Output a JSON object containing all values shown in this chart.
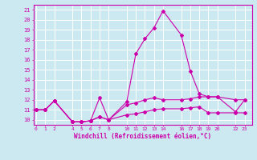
{
  "xlabel": "Windchill (Refroidissement éolien,°C)",
  "background_color": "#cce8f0",
  "grid_color": "#ffffff",
  "line_color": "#cc00aa",
  "x_ticks": [
    0,
    1,
    2,
    4,
    5,
    6,
    7,
    8,
    10,
    11,
    12,
    13,
    14,
    16,
    17,
    18,
    19,
    20,
    22,
    23
  ],
  "ylim": [
    9.5,
    21.5
  ],
  "xlim": [
    -0.3,
    23.8
  ],
  "yticks": [
    10,
    11,
    12,
    13,
    14,
    15,
    16,
    17,
    18,
    19,
    20,
    21
  ],
  "series": [
    {
      "x": [
        0,
        1,
        2,
        4,
        5,
        6,
        7,
        8,
        10,
        11,
        12,
        13,
        14,
        16,
        17,
        18,
        19,
        20,
        22,
        23
      ],
      "y": [
        11.0,
        11.0,
        11.9,
        9.8,
        9.8,
        9.9,
        10.3,
        10.0,
        10.5,
        10.6,
        10.8,
        11.0,
        11.1,
        11.1,
        11.2,
        11.3,
        10.7,
        10.7,
        10.7,
        10.7
      ]
    },
    {
      "x": [
        0,
        1,
        2,
        4,
        5,
        6,
        7,
        8,
        10,
        11,
        12,
        13,
        14,
        16,
        17,
        18,
        19,
        20,
        22,
        23
      ],
      "y": [
        11.0,
        11.0,
        11.9,
        9.8,
        9.8,
        9.9,
        12.2,
        10.0,
        11.5,
        11.7,
        12.0,
        12.2,
        12.0,
        12.0,
        12.1,
        12.3,
        12.3,
        12.3,
        12.0,
        12.0
      ]
    },
    {
      "x": [
        0,
        1,
        2,
        4,
        5,
        6,
        7,
        8,
        10,
        11,
        12,
        13,
        14,
        16,
        17,
        18,
        19,
        20,
        22,
        23
      ],
      "y": [
        11.0,
        11.0,
        11.9,
        9.8,
        9.8,
        9.9,
        10.3,
        10.0,
        11.8,
        16.6,
        18.1,
        19.2,
        20.9,
        18.5,
        14.9,
        12.6,
        12.3,
        12.3,
        10.8,
        12.0
      ]
    }
  ]
}
